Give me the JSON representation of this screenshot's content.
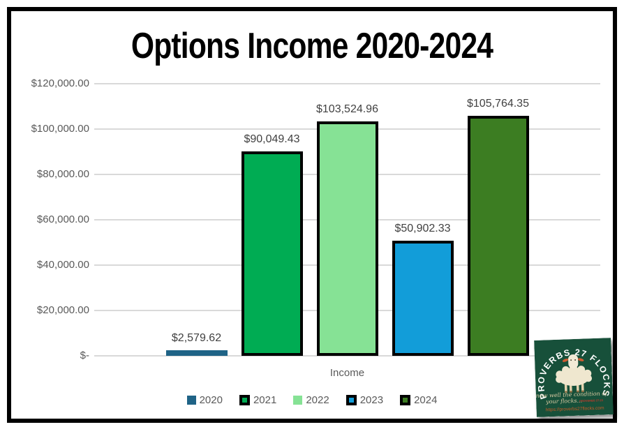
{
  "title": "Options Income 2020-2024",
  "chart_data": {
    "type": "bar",
    "title": "Options Income 2020-2024",
    "categories": [
      "Income"
    ],
    "series": [
      {
        "name": "2020",
        "value": 2579.62,
        "label": "$2,579.62",
        "color": "#1f6386",
        "chart_border": false,
        "legend_border": false
      },
      {
        "name": "2021",
        "value": 90049.43,
        "label": "$90,049.43",
        "color": "#00ac53",
        "chart_border": true,
        "legend_border": true
      },
      {
        "name": "2022",
        "value": 103524.96,
        "label": "$103,524.96",
        "color": "#86e295",
        "chart_border": true,
        "legend_border": false
      },
      {
        "name": "2023",
        "value": 50902.33,
        "label": "$50,902.33",
        "color": "#129dd9",
        "chart_border": true,
        "legend_border": true
      },
      {
        "name": "2024",
        "value": 105764.35,
        "label": "$105,764.35",
        "color": "#3c7d22",
        "chart_border": true,
        "legend_border": true
      }
    ],
    "xlabel": "Income",
    "ylabel": "",
    "ylim": [
      0,
      120000
    ],
    "y_ticks": [
      {
        "value": 120000,
        "label": "$120,000.00"
      },
      {
        "value": 100000,
        "label": "$100,000.00"
      },
      {
        "value": 80000,
        "label": "$80,000.00"
      },
      {
        "value": 60000,
        "label": "$60,000.00"
      },
      {
        "value": 40000,
        "label": "$40,000.00"
      },
      {
        "value": 20000,
        "label": "$20,000.00"
      },
      {
        "value": 0,
        "label": "$-"
      }
    ],
    "grid": true,
    "legend_position": "bottom",
    "gridline_color": "#d9d9d9",
    "axis_text_color": "#595959",
    "data_label_color": "#404040"
  },
  "logo": {
    "arc_text": "PROVERBS 27 FLOCKS",
    "tagline_line1": "Know well the condition of",
    "tagline_line2": "your flocks...",
    "verse_ref": "PROVERBS 27:23",
    "url": "https://proverbs27flocks.com",
    "bg_color": "#17503a",
    "arc_text_color": "#ffffff",
    "tagline_color": "#d9c9a2",
    "verse_color": "#c0392b",
    "url_color": "#c75b28"
  }
}
